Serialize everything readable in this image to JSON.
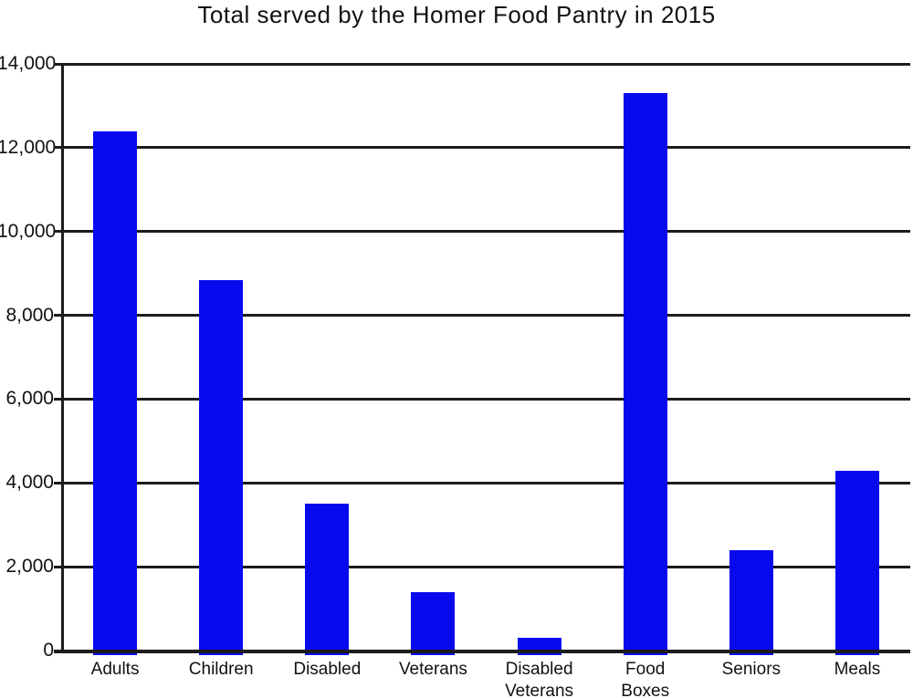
{
  "page": {
    "background_color": "#ffffff"
  },
  "chart_data": {
    "type": "bar",
    "title": "Total served by the Homer Food Pantry in 2015",
    "categories": [
      "Adults",
      "Children",
      "Disabled",
      "Veterans",
      "Disabled Veterans",
      "Food Boxes",
      "Seniors",
      "Meals"
    ],
    "category_lines": [
      [
        "Adults"
      ],
      [
        "Children"
      ],
      [
        "Disabled"
      ],
      [
        "Veterans"
      ],
      [
        "Disabled",
        "Veterans"
      ],
      [
        "Food",
        "Boxes"
      ],
      [
        "Seniors"
      ],
      [
        "Meals"
      ]
    ],
    "values": [
      12400,
      8850,
      3500,
      1400,
      300,
      13300,
      2400,
      4300
    ],
    "xlabel": "",
    "ylabel": "",
    "ylim": [
      0,
      14000
    ],
    "y_tick_step": 2000,
    "y_tick_values": [
      0,
      2000,
      4000,
      6000,
      8000,
      10000,
      12000,
      14000
    ],
    "y_tick_labels": [
      "0",
      "2,000",
      "4,000",
      "6,000",
      "8,000",
      "10,000",
      "12,000",
      "14,000"
    ],
    "grid": true,
    "legend_position": "none",
    "bar_color": "#0909ee",
    "grid_color": "#1c1c1c",
    "text_color": "#121212"
  }
}
